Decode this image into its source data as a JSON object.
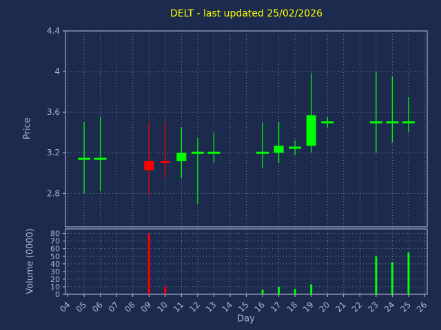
{
  "colors": {
    "background": "#1c2b4d",
    "grid": "#8391b3",
    "spine": "#bac6de",
    "text": "#a9b8d9",
    "title": "#ffff00",
    "up": "#00ff00",
    "down": "#ff0000"
  },
  "chart_data": {
    "type": "candlestick",
    "title": "DELT - last updated 25/02/2026",
    "xlabel": "Day",
    "ylabel_price": "Price",
    "ylabel_volume": "Volume (0000)",
    "x_tick_labels": [
      "04",
      "05",
      "06",
      "07",
      "08",
      "09",
      "10",
      "11",
      "12",
      "13",
      "14",
      "15",
      "16",
      "17",
      "18",
      "19",
      "20",
      "21",
      "22",
      "23",
      "24",
      "25",
      "26"
    ],
    "price_ticks": [
      "2.8",
      "3.2",
      "3.6",
      "4",
      "4.4"
    ],
    "volume_ticks": [
      "0",
      "10",
      "20",
      "30",
      "40",
      "50",
      "60",
      "70",
      "80"
    ],
    "x_range": [
      3.85,
      26.15
    ],
    "price_ylim": [
      2.47,
      4.4
    ],
    "volume_ylim": [
      0,
      86
    ],
    "grid": "dotted",
    "candles": [
      {
        "day": 5,
        "open": 3.14,
        "high": 3.5,
        "low": 2.8,
        "close": 3.14,
        "volume": 0
      },
      {
        "day": 6,
        "open": 3.14,
        "high": 3.55,
        "low": 2.82,
        "close": 3.14,
        "volume": 0
      },
      {
        "day": 9,
        "open": 3.12,
        "high": 3.5,
        "low": 2.78,
        "close": 3.03,
        "volume": 80
      },
      {
        "day": 10,
        "open": 3.12,
        "high": 3.5,
        "low": 2.95,
        "close": 3.1,
        "volume": 10
      },
      {
        "day": 11,
        "open": 3.12,
        "high": 3.45,
        "low": 2.95,
        "close": 3.2,
        "volume": 0
      },
      {
        "day": 12,
        "open": 3.2,
        "high": 3.35,
        "low": 2.7,
        "close": 3.2,
        "volume": 0
      },
      {
        "day": 13,
        "open": 3.2,
        "high": 3.4,
        "low": 3.1,
        "close": 3.2,
        "volume": 0
      },
      {
        "day": 16,
        "open": 3.2,
        "high": 3.5,
        "low": 3.05,
        "close": 3.2,
        "volume": 6
      },
      {
        "day": 17,
        "open": 3.2,
        "high": 3.5,
        "low": 3.1,
        "close": 3.27,
        "volume": 10
      },
      {
        "day": 18,
        "open": 3.25,
        "high": 3.32,
        "low": 3.18,
        "close": 3.25,
        "volume": 7
      },
      {
        "day": 19,
        "open": 3.27,
        "high": 3.98,
        "low": 3.2,
        "close": 3.57,
        "volume": 13
      },
      {
        "day": 20,
        "open": 3.5,
        "high": 3.55,
        "low": 3.45,
        "close": 3.5,
        "volume": 0
      },
      {
        "day": 23,
        "open": 3.5,
        "high": 4.0,
        "low": 3.2,
        "close": 3.5,
        "volume": 50
      },
      {
        "day": 24,
        "open": 3.5,
        "high": 3.95,
        "low": 3.3,
        "close": 3.5,
        "volume": 42
      },
      {
        "day": 25,
        "open": 3.5,
        "high": 3.75,
        "low": 3.4,
        "close": 3.5,
        "volume": 55
      }
    ]
  }
}
